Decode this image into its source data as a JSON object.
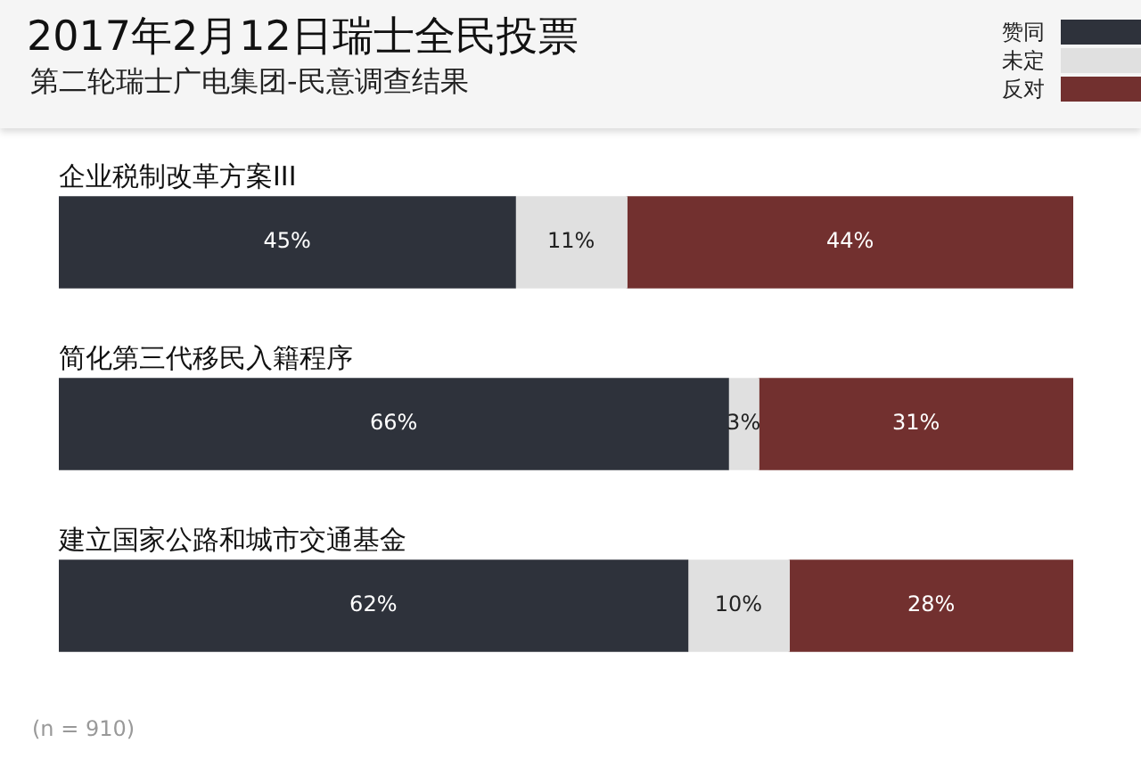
{
  "chart_data": {
    "type": "bar",
    "title": "2017年2月12日瑞士全民投票",
    "subtitle": "第二轮瑞士广电集团-民意调查结果",
    "categories": [
      "企业税制改革方案III",
      "简化第三代移民入籍程序",
      "建立国家公路和城市交通基金"
    ],
    "series": [
      {
        "name": "赞同",
        "color": "#2e323b",
        "values": [
          45,
          66,
          62
        ],
        "value_labels": [
          "45%",
          "66%",
          "62%"
        ]
      },
      {
        "name": "未定",
        "color": "#e0e0e0",
        "values": [
          11,
          3,
          10
        ],
        "value_labels": [
          "11%",
          "3%",
          "10%"
        ]
      },
      {
        "name": "反对",
        "color": "#72302f",
        "values": [
          44,
          31,
          28
        ],
        "value_labels": [
          "44%",
          "31%",
          "28%"
        ]
      }
    ],
    "stacked": true,
    "orientation": "horizontal",
    "xlim": [
      0,
      100
    ],
    "tick_labels": "y",
    "legend": "top right",
    "annotations": [
      "(n = 910)"
    ]
  }
}
